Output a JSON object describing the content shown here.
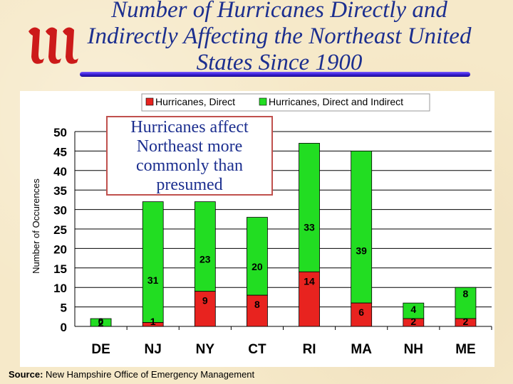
{
  "title": "Number of Hurricanes Directly and Indirectly Affecting the Northeast United States Since 1900",
  "callout": "Hurricanes affect Northeast more commonly than presumed",
  "source": {
    "label": "Source:",
    "text": "New Hampshire Office of Emergency Management"
  },
  "colors": {
    "direct": "#e8231f",
    "indirect": "#22dd22",
    "title": "#1c2f8f",
    "logo": "#cc1a1a"
  },
  "chart_data": {
    "type": "bar",
    "stacked": true,
    "categories": [
      "DE",
      "NJ",
      "NY",
      "CT",
      "RI",
      "MA",
      "NH",
      "ME"
    ],
    "series": [
      {
        "name": "Hurricanes, Direct",
        "values": [
          0,
          1,
          9,
          8,
          14,
          6,
          2,
          2
        ],
        "labels": [
          "0",
          "1",
          "9",
          "8",
          "14",
          "6",
          "2",
          "2"
        ]
      },
      {
        "name": "Hurricanes, Direct and Indirect",
        "values": [
          2,
          31,
          23,
          20,
          33,
          39,
          4,
          8
        ],
        "labels": [
          "2",
          "31",
          "23",
          "20",
          "33",
          "39",
          "4",
          "8"
        ]
      }
    ],
    "title": "",
    "xlabel": "",
    "ylabel": "Number of Occurences",
    "ylim": [
      0,
      50
    ],
    "yticks": [
      0,
      5,
      10,
      15,
      20,
      25,
      30,
      35,
      40,
      45,
      50
    ],
    "grid": true,
    "legend": "top-center"
  }
}
